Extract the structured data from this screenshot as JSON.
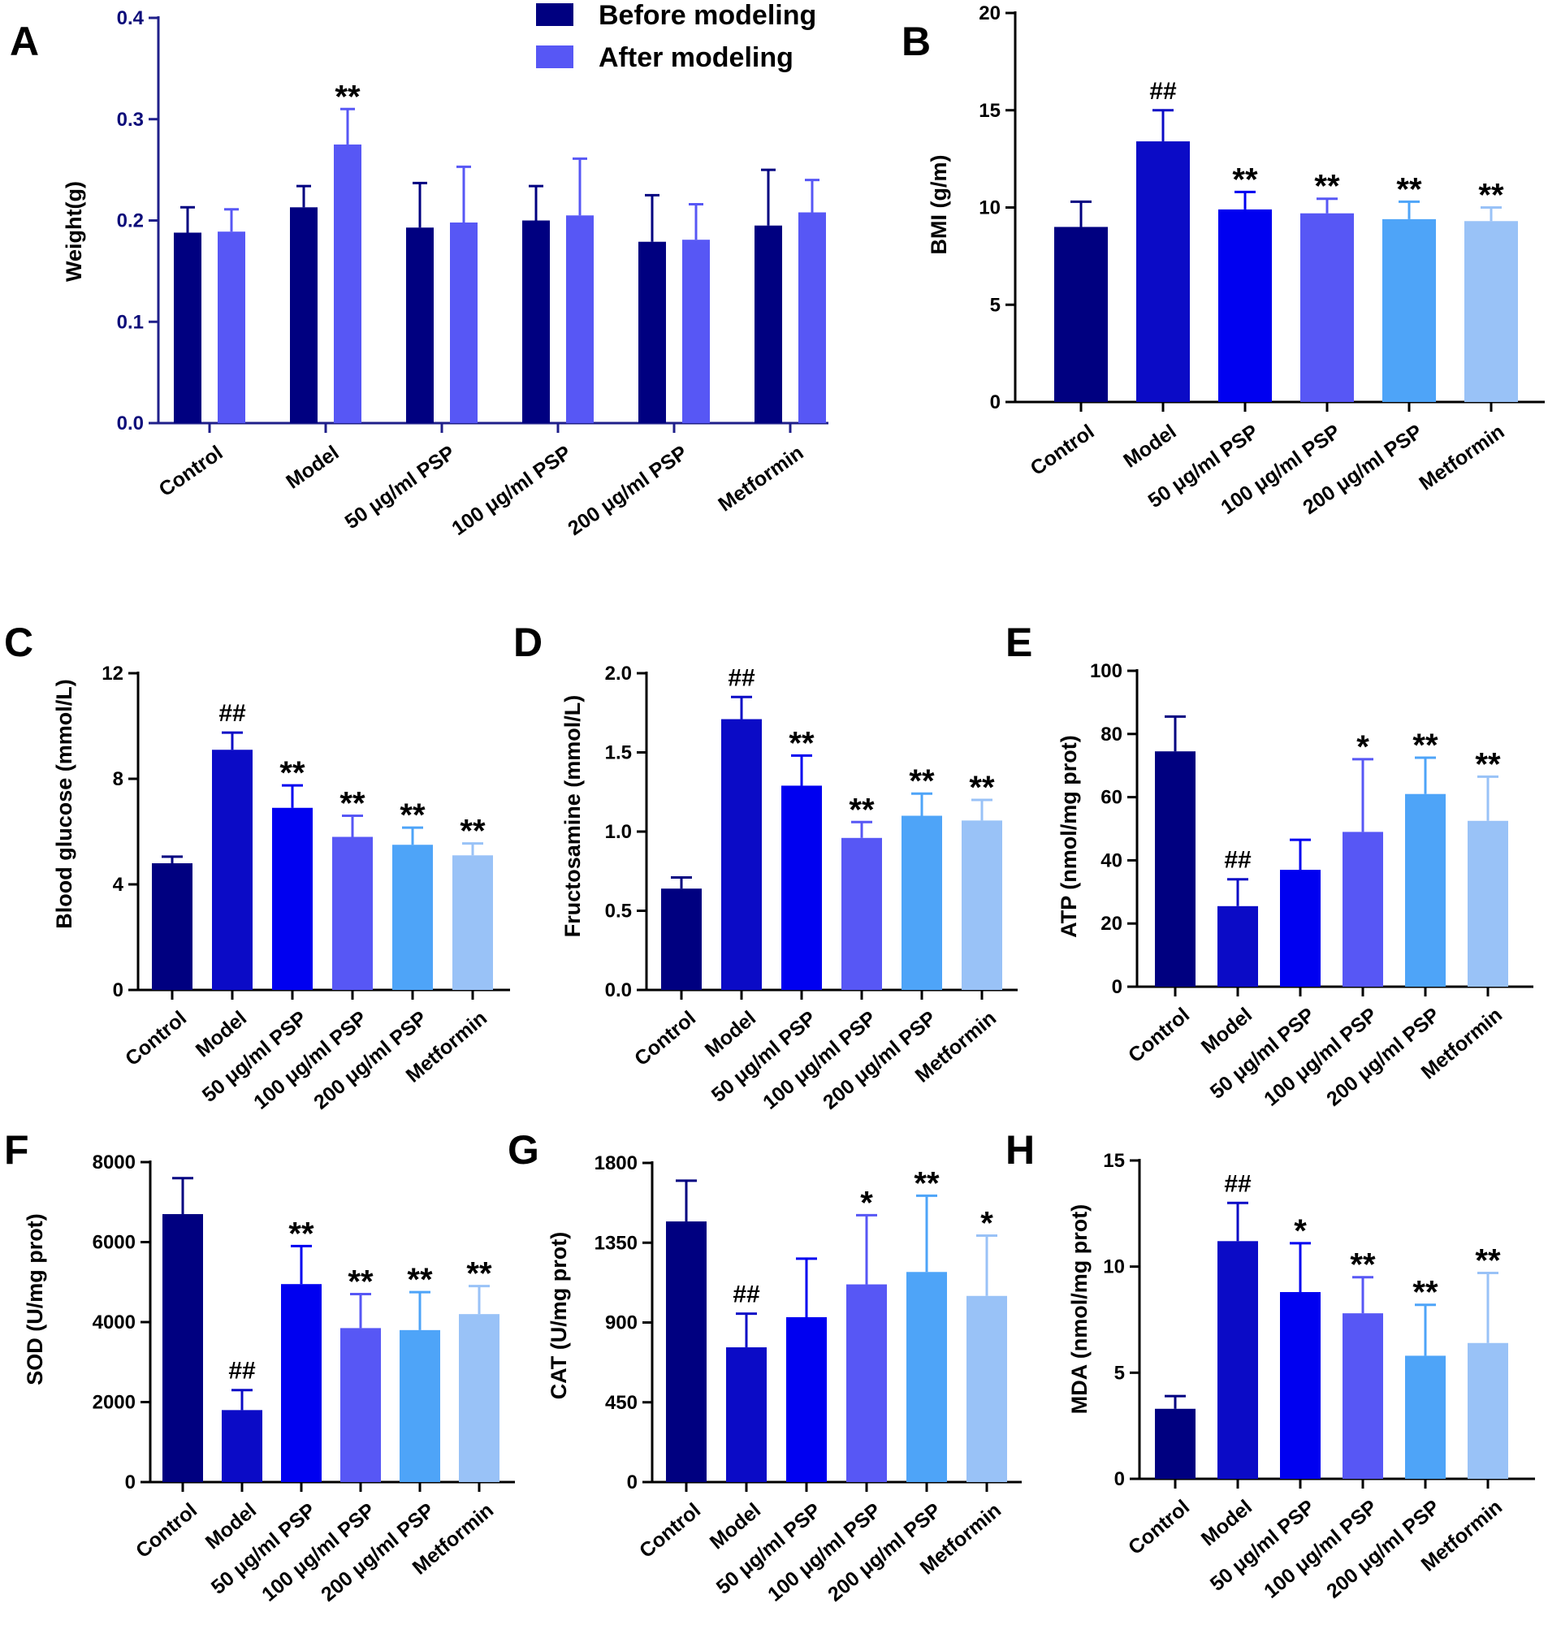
{
  "palette": [
    "#000080",
    "#0b0bc6",
    "#0000f0",
    "#5757f5",
    "#4ea4f8",
    "#99c2f7"
  ],
  "legend_colors": [
    "#000080",
    "#5757f5"
  ],
  "chart_data": [
    {
      "id": "A",
      "panel_label": "A",
      "type": "bar",
      "grouped": true,
      "ylabel": "Weight(g)",
      "ylim": [
        0,
        0.4
      ],
      "yticks": [
        0,
        0.1,
        0.2,
        0.3,
        0.4
      ],
      "ytick_labels": [
        "0.0",
        "0.1",
        "0.2",
        "0.3",
        "0.4"
      ],
      "categories": [
        "Control",
        "Model",
        "50 μg/ml PSP",
        "100 μg/ml PSP",
        "200 μg/ml PSP",
        "Metformin"
      ],
      "series": [
        {
          "name": "Before modeling",
          "values": [
            0.188,
            0.213,
            0.193,
            0.2,
            0.179,
            0.195
          ],
          "errors": [
            0.025,
            0.021,
            0.044,
            0.034,
            0.046,
            0.055
          ]
        },
        {
          "name": "After modeling",
          "values": [
            0.189,
            0.275,
            0.198,
            0.205,
            0.181,
            0.208
          ],
          "errors": [
            0.022,
            0.035,
            0.055,
            0.056,
            0.035,
            0.032
          ]
        }
      ],
      "annotations": [
        "",
        "**",
        "",
        "",
        "",
        ""
      ],
      "legend": "top-center"
    },
    {
      "id": "B",
      "panel_label": "B",
      "type": "bar",
      "ylabel": "BMI (g/m)",
      "ylim": [
        0,
        20
      ],
      "yticks": [
        0,
        5,
        10,
        15,
        20
      ],
      "ytick_labels": [
        "0",
        "5",
        "10",
        "15",
        "20"
      ],
      "categories": [
        "Control",
        "Model",
        "50 μg/ml PSP",
        "100 μg/ml PSP",
        "200 μg/ml PSP",
        "Metformin"
      ],
      "values": [
        9.0,
        13.4,
        9.9,
        9.7,
        9.4,
        9.3
      ],
      "errors": [
        1.3,
        1.6,
        0.9,
        0.75,
        0.9,
        0.7
      ],
      "annotations": [
        "",
        "##",
        "**",
        "**",
        "**",
        "**"
      ]
    },
    {
      "id": "C",
      "panel_label": "C",
      "type": "bar",
      "ylabel": "Blood glucose (mmol/L)",
      "ylim": [
        0,
        12
      ],
      "yticks": [
        0,
        4,
        8,
        12
      ],
      "ytick_labels": [
        "0",
        "4",
        "8",
        "12"
      ],
      "categories": [
        "Control",
        "Model",
        "50 μg/ml PSP",
        "100 μg/ml PSP",
        "200 μg/ml PSP",
        "Metformin"
      ],
      "values": [
        4.8,
        9.1,
        6.9,
        5.8,
        5.5,
        5.1
      ],
      "errors": [
        0.25,
        0.65,
        0.85,
        0.8,
        0.65,
        0.45
      ],
      "annotations": [
        "",
        "##",
        "**",
        "**",
        "**",
        "**"
      ]
    },
    {
      "id": "D",
      "panel_label": "D",
      "type": "bar",
      "ylabel": "Fructosamine (mmol/L)",
      "ylim": [
        0,
        2.0
      ],
      "yticks": [
        0,
        0.5,
        1.0,
        1.5,
        2.0
      ],
      "ytick_labels": [
        "0.0",
        "0.5",
        "1.0",
        "1.5",
        "2.0"
      ],
      "categories": [
        "Control",
        "Model",
        "50 μg/ml PSP",
        "100 μg/ml PSP",
        "200 μg/ml PSP",
        "Metformin"
      ],
      "values": [
        0.64,
        1.71,
        1.29,
        0.96,
        1.1,
        1.07
      ],
      "errors": [
        0.07,
        0.14,
        0.19,
        0.1,
        0.14,
        0.13
      ],
      "annotations": [
        "",
        "##",
        "**",
        "**",
        "**",
        "**"
      ]
    },
    {
      "id": "E",
      "panel_label": "E",
      "type": "bar",
      "ylabel": "ATP (nmol/mg prot)",
      "ylim": [
        0,
        100
      ],
      "yticks": [
        0,
        20,
        40,
        60,
        80,
        100
      ],
      "ytick_labels": [
        "0",
        "20",
        "40",
        "60",
        "80",
        "100"
      ],
      "categories": [
        "Control",
        "Model",
        "50 μg/ml PSP",
        "100 μg/ml PSP",
        "200 μg/ml PSP",
        "Metformin"
      ],
      "values": [
        74.5,
        25.5,
        37.0,
        49.0,
        61.0,
        52.5
      ],
      "errors": [
        11.0,
        8.5,
        9.5,
        23.0,
        11.5,
        14.0
      ],
      "annotations": [
        "",
        "##",
        "",
        "*",
        "**",
        "**"
      ]
    },
    {
      "id": "F",
      "panel_label": "F",
      "type": "bar",
      "ylabel": "SOD (U/mg prot)",
      "ylim": [
        0,
        8000
      ],
      "yticks": [
        0,
        2000,
        4000,
        6000,
        8000
      ],
      "ytick_labels": [
        "0",
        "2000",
        "4000",
        "6000",
        "8000"
      ],
      "categories": [
        "Control",
        "Model",
        "50 μg/ml PSP",
        "100 μg/ml PSP",
        "200 μg/ml PSP",
        "Metformin"
      ],
      "values": [
        6700,
        1800,
        4950,
        3850,
        3800,
        4200
      ],
      "errors": [
        900,
        500,
        950,
        850,
        950,
        700
      ],
      "annotations": [
        "",
        "##",
        "**",
        "**",
        "**",
        "**"
      ]
    },
    {
      "id": "G",
      "panel_label": "G",
      "type": "bar",
      "ylabel": "CAT (U/mg prot)",
      "ylim": [
        0,
        1800
      ],
      "yticks": [
        0,
        450,
        900,
        1350,
        1800
      ],
      "ytick_labels": [
        "0",
        "450",
        "900",
        "1350",
        "1800"
      ],
      "categories": [
        "Control",
        "Model",
        "50 μg/ml PSP",
        "100 μg/ml PSP",
        "200 μg/ml PSP",
        "Metformin"
      ],
      "values": [
        1470,
        760,
        930,
        1115,
        1185,
        1050
      ],
      "errors": [
        230,
        190,
        330,
        390,
        430,
        340
      ],
      "annotations": [
        "",
        "##",
        "",
        "*",
        "**",
        "*"
      ]
    },
    {
      "id": "H",
      "panel_label": "H",
      "type": "bar",
      "ylabel": "MDA (nmol/mg prot)",
      "ylim": [
        0,
        15
      ],
      "yticks": [
        0,
        5,
        10,
        15
      ],
      "ytick_labels": [
        "0",
        "5",
        "10",
        "15"
      ],
      "categories": [
        "Control",
        "Model",
        "50 μg/ml PSP",
        "100 μg/ml PSP",
        "200 μg/ml PSP",
        "Metformin"
      ],
      "values": [
        3.3,
        11.2,
        8.8,
        7.8,
        5.8,
        6.4
      ],
      "errors": [
        0.6,
        1.8,
        2.3,
        1.7,
        2.4,
        3.3
      ],
      "annotations": [
        "",
        "##",
        "*",
        "**",
        "**",
        "**"
      ]
    }
  ]
}
